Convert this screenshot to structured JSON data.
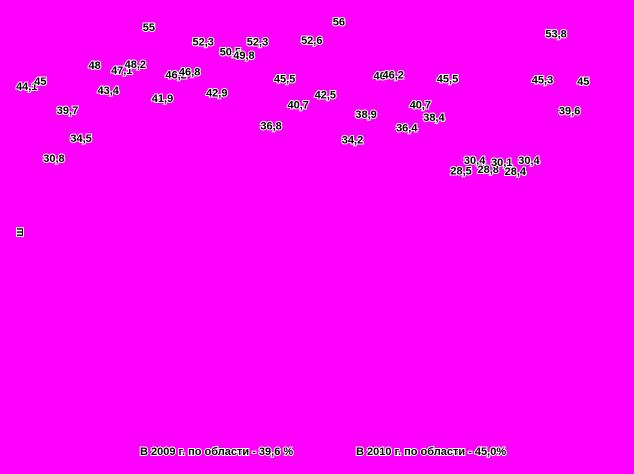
{
  "chart_data": {
    "type": "label-scatter",
    "y_label": "ш",
    "categories": [
      null,
      null,
      null,
      null,
      null,
      null,
      null,
      null,
      null,
      null,
      null,
      null,
      null,
      null,
      null,
      null,
      null,
      null,
      null,
      null,
      null,
      null,
      null,
      null,
      null,
      null,
      null,
      null,
      null,
      null,
      null,
      null,
      null,
      null,
      null,
      null,
      null,
      null,
      null,
      null,
      null,
      null
    ],
    "values": [
      44.1,
      45,
      30.8,
      39.7,
      34.5,
      48,
      43.4,
      47.1,
      48.2,
      55,
      41.9,
      46.2,
      46.8,
      52.3,
      42.9,
      50.5,
      49.8,
      52.3,
      36.8,
      45.5,
      40.7,
      52.6,
      42.5,
      56,
      34.2,
      38.9,
      46,
      46.2,
      36.4,
      40.7,
      38.4,
      45.5,
      28.5,
      30.4,
      28.8,
      30.1,
      28.4,
      30.4,
      45.3,
      53.8,
      39.6,
      45
    ],
    "value_labels": [
      "44,1",
      "45",
      "30,8",
      "39,7",
      "34,5",
      "48",
      "43,4",
      "47,1",
      "48,2",
      "55",
      "41,9",
      "46,2",
      "46,8",
      "52,3",
      "42,9",
      "50,5",
      "49,8",
      "52,3",
      "36,8",
      "45,5",
      "40,7",
      "52,6",
      "42,5",
      "56",
      "34,2",
      "38,9",
      "46",
      "46,2",
      "36,4",
      "40,7",
      "38,4",
      "45,5",
      "28,5",
      "30,4",
      "28,8",
      "30,1",
      "28,4",
      "30,4",
      "45,3",
      "53,8",
      "39,6",
      "45"
    ],
    "color": "#000000",
    "background": "#ff00ff",
    "ylim": [
      0,
      60
    ],
    "annotations": [
      "В 2009 г. по области - 39,6 %",
      "В 2010 г. по области - 45,0%"
    ]
  }
}
